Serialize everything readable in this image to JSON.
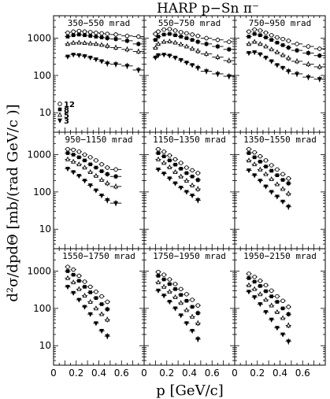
{
  "chart_data": {
    "type": "scatter",
    "title": "HARP p−Sn π⁻",
    "xlabel": "p [GeV/c]",
    "ylabel": "d²σ/dpdΘ [mb/(rad GeV/c )]",
    "xlim": [
      0,
      0.8
    ],
    "ylim": [
      3,
      4000
    ],
    "log_y": true,
    "x_ticks": [
      "0",
      "0.2",
      "0.4",
      "0.6"
    ],
    "y_ticks": [
      "10",
      "100",
      "1000"
    ],
    "legend": {
      "placement": "inside first panel, left",
      "entries": [
        "12",
        "8",
        "5",
        "3"
      ]
    },
    "panels": [
      {
        "label": "350−550 mrad",
        "series": [
          {
            "name": "12",
            "x": [
              0.125,
              0.175,
              0.225,
              0.275,
              0.325,
              0.375,
              0.425,
              0.475,
              0.55,
              0.65,
              0.75
            ],
            "y": [
              1400,
              1500,
              1550,
              1500,
              1450,
              1400,
              1350,
              1300,
              1250,
              1150,
              1100
            ]
          },
          {
            "name": "8",
            "x": [
              0.125,
              0.175,
              0.225,
              0.275,
              0.325,
              0.375,
              0.425,
              0.475,
              0.55,
              0.65,
              0.75
            ],
            "y": [
              1100,
              1200,
              1250,
              1200,
              1150,
              1100,
              1050,
              1000,
              950,
              850,
              700
            ]
          },
          {
            "name": "5",
            "x": [
              0.125,
              0.175,
              0.225,
              0.275,
              0.325,
              0.375,
              0.425,
              0.475,
              0.55,
              0.65,
              0.75
            ],
            "y": [
              700,
              750,
              760,
              740,
              720,
              700,
              660,
              620,
              560,
              500,
              440
            ]
          },
          {
            "name": "3",
            "x": [
              0.125,
              0.175,
              0.225,
              0.275,
              0.325,
              0.375,
              0.425,
              0.475,
              0.55,
              0.65,
              0.75
            ],
            "y": [
              320,
              360,
              350,
              330,
              300,
              270,
              240,
              210,
              200,
              180,
              140
            ]
          }
        ]
      },
      {
        "label": "550−750 mrad",
        "series": [
          {
            "name": "12",
            "x": [
              0.1,
              0.125,
              0.175,
              0.225,
              0.275,
              0.325,
              0.375,
              0.425,
              0.475,
              0.55,
              0.65,
              0.75
            ],
            "y": [
              1300,
              1500,
              1700,
              1750,
              1600,
              1450,
              1350,
              1250,
              1150,
              1000,
              900,
              800
            ]
          },
          {
            "name": "8",
            "x": [
              0.1,
              0.125,
              0.175,
              0.225,
              0.275,
              0.325,
              0.375,
              0.425,
              0.475,
              0.55,
              0.65,
              0.75
            ],
            "y": [
              900,
              1100,
              1250,
              1300,
              1200,
              1100,
              1000,
              900,
              800,
              700,
              600,
              500
            ]
          },
          {
            "name": "5",
            "x": [
              0.1,
              0.125,
              0.175,
              0.225,
              0.275,
              0.325,
              0.375,
              0.425,
              0.475,
              0.55,
              0.65,
              0.75
            ],
            "y": [
              550,
              700,
              800,
              820,
              760,
              680,
              600,
              520,
              450,
              380,
              310,
              250
            ]
          },
          {
            "name": "3",
            "x": [
              0.1,
              0.125,
              0.175,
              0.225,
              0.275,
              0.325,
              0.375,
              0.425,
              0.475,
              0.55,
              0.65,
              0.75
            ],
            "y": [
              300,
              350,
              360,
              340,
              300,
              260,
              220,
              190,
              160,
              130,
              110,
              95
            ]
          }
        ]
      },
      {
        "label": "750−950 mrad",
        "series": [
          {
            "name": "12",
            "x": [
              0.125,
              0.175,
              0.225,
              0.275,
              0.325,
              0.375,
              0.425,
              0.475,
              0.55,
              0.65,
              0.75
            ],
            "y": [
              1500,
              1700,
              1600,
              1400,
              1200,
              1050,
              950,
              850,
              700,
              600,
              520
            ]
          },
          {
            "name": "8",
            "x": [
              0.125,
              0.175,
              0.225,
              0.275,
              0.325,
              0.375,
              0.425,
              0.475,
              0.55,
              0.65,
              0.75
            ],
            "y": [
              1100,
              1300,
              1200,
              1050,
              900,
              760,
              650,
              560,
              470,
              400,
              340
            ]
          },
          {
            "name": "5",
            "x": [
              0.125,
              0.175,
              0.225,
              0.275,
              0.325,
              0.375,
              0.425,
              0.475,
              0.55,
              0.65,
              0.75
            ],
            "y": [
              700,
              800,
              700,
              600,
              500,
              420,
              350,
              290,
              240,
              200,
              170
            ]
          },
          {
            "name": "3",
            "x": [
              0.125,
              0.175,
              0.225,
              0.275,
              0.325,
              0.375,
              0.425,
              0.475,
              0.55,
              0.65,
              0.75
            ],
            "y": [
              400,
              420,
              370,
              300,
              240,
              190,
              160,
              130,
              110,
              90,
              80
            ]
          }
        ]
      },
      {
        "label": "950−1150 mrad",
        "series": [
          {
            "name": "12",
            "x": [
              0.125,
              0.175,
              0.225,
              0.275,
              0.325,
              0.375,
              0.425,
              0.475,
              0.55
            ],
            "y": [
              1400,
              1350,
              1200,
              1000,
              850,
              700,
              550,
              450,
              400
            ]
          },
          {
            "name": "8",
            "x": [
              0.125,
              0.175,
              0.225,
              0.275,
              0.325,
              0.375,
              0.425,
              0.475,
              0.55
            ],
            "y": [
              1100,
              1000,
              850,
              700,
              550,
              450,
              360,
              300,
              260
            ]
          },
          {
            "name": "5",
            "x": [
              0.125,
              0.175,
              0.225,
              0.275,
              0.325,
              0.375,
              0.425,
              0.475,
              0.55
            ],
            "y": [
              750,
              650,
              550,
              450,
              340,
              270,
              210,
              170,
              140
            ]
          },
          {
            "name": "3",
            "x": [
              0.125,
              0.175,
              0.225,
              0.275,
              0.325,
              0.375,
              0.425,
              0.475,
              0.55
            ],
            "y": [
              420,
              340,
              270,
              200,
              150,
              110,
              80,
              60,
              50
            ]
          }
        ]
      },
      {
        "label": "1150−1350 mrad",
        "series": [
          {
            "name": "12",
            "x": [
              0.125,
              0.175,
              0.225,
              0.275,
              0.325,
              0.375,
              0.425,
              0.475
            ],
            "y": [
              1400,
              1200,
              950,
              750,
              600,
              450,
              380,
              320
            ]
          },
          {
            "name": "8",
            "x": [
              0.125,
              0.175,
              0.225,
              0.275,
              0.325,
              0.375,
              0.425,
              0.475
            ],
            "y": [
              1100,
              900,
              700,
              540,
              420,
              320,
              260,
              210
            ]
          },
          {
            "name": "5",
            "x": [
              0.125,
              0.175,
              0.225,
              0.275,
              0.325,
              0.375,
              0.425,
              0.475
            ],
            "y": [
              750,
              600,
              460,
              340,
              260,
              200,
              150,
              120
            ]
          },
          {
            "name": "3",
            "x": [
              0.125,
              0.175,
              0.225,
              0.275,
              0.325,
              0.375,
              0.425,
              0.475
            ],
            "y": [
              400,
              310,
              230,
              170,
              130,
              100,
              80,
              60
            ]
          }
        ]
      },
      {
        "label": "1350−1550 mrad",
        "series": [
          {
            "name": "12",
            "x": [
              0.125,
              0.175,
              0.225,
              0.275,
              0.325,
              0.375,
              0.425,
              0.475
            ],
            "y": [
              1400,
              1150,
              900,
              700,
              520,
              400,
              300,
              230
            ]
          },
          {
            "name": "8",
            "x": [
              0.125,
              0.175,
              0.225,
              0.275,
              0.325,
              0.375,
              0.425,
              0.475
            ],
            "y": [
              1100,
              850,
              650,
              480,
              370,
              280,
              210,
              170
            ]
          },
          {
            "name": "5",
            "x": [
              0.125,
              0.175,
              0.225,
              0.275,
              0.325,
              0.375,
              0.425,
              0.475
            ],
            "y": [
              700,
              550,
              400,
              300,
              220,
              160,
              120,
              90
            ]
          },
          {
            "name": "3",
            "x": [
              0.125,
              0.175,
              0.225,
              0.275,
              0.325,
              0.375,
              0.425,
              0.475
            ],
            "y": [
              380,
              280,
              200,
              140,
              100,
              75,
              55,
              40
            ]
          }
        ]
      },
      {
        "label": "1550−1750 mrad",
        "series": [
          {
            "name": "12",
            "x": [
              0.125,
              0.175,
              0.225,
              0.275,
              0.325,
              0.375,
              0.425,
              0.475
            ],
            "y": [
              1300,
              1100,
              750,
              520,
              380,
              280,
              210,
              150
            ]
          },
          {
            "name": "8",
            "x": [
              0.125,
              0.175,
              0.225,
              0.275,
              0.325,
              0.375,
              0.425,
              0.475
            ],
            "y": [
              1000,
              800,
              550,
              380,
              270,
              190,
              130,
              95
            ]
          },
          {
            "name": "5",
            "x": [
              0.125,
              0.175,
              0.225,
              0.275,
              0.325,
              0.375,
              0.425,
              0.475
            ],
            "y": [
              650,
              500,
              330,
              220,
              150,
              100,
              70,
              50
            ]
          },
          {
            "name": "3",
            "x": [
              0.125,
              0.175,
              0.225,
              0.275,
              0.325,
              0.375,
              0.425,
              0.475
            ],
            "y": [
              380,
              260,
              170,
              110,
              70,
              40,
              25,
              18
            ]
          }
        ]
      },
      {
        "label": "1750−1950 mrad",
        "series": [
          {
            "name": "12",
            "x": [
              0.125,
              0.175,
              0.225,
              0.275,
              0.325,
              0.375,
              0.425,
              0.475
            ],
            "y": [
              950,
              800,
              600,
              450,
              330,
              240,
              170,
              120
            ]
          },
          {
            "name": "8",
            "x": [
              0.125,
              0.175,
              0.225,
              0.275,
              0.325,
              0.375,
              0.425,
              0.475
            ],
            "y": [
              750,
              600,
              450,
              330,
              230,
              160,
              110,
              75
            ]
          },
          {
            "name": "5",
            "x": [
              0.125,
              0.175,
              0.225,
              0.275,
              0.325,
              0.375,
              0.425,
              0.475
            ],
            "y": [
              500,
              380,
              280,
              200,
              140,
              90,
              60,
              40
            ]
          },
          {
            "name": "3",
            "x": [
              0.125,
              0.175,
              0.225,
              0.275,
              0.325,
              0.375,
              0.425,
              0.475
            ],
            "y": [
              300,
              220,
              150,
              100,
              65,
              40,
              25,
              15
            ]
          }
        ]
      },
      {
        "label": "1950−2150 mrad",
        "series": [
          {
            "name": "12",
            "x": [
              0.125,
              0.175,
              0.225,
              0.275,
              0.325,
              0.375,
              0.425,
              0.475
            ],
            "y": [
              850,
              700,
              550,
              420,
              300,
              210,
              160,
              110
            ]
          },
          {
            "name": "8",
            "x": [
              0.125,
              0.175,
              0.225,
              0.275,
              0.325,
              0.375,
              0.425,
              0.475
            ],
            "y": [
              650,
              520,
              400,
              290,
              210,
              150,
              100,
              70
            ]
          },
          {
            "name": "5",
            "x": [
              0.125,
              0.175,
              0.225,
              0.275,
              0.325,
              0.375,
              0.425,
              0.475
            ],
            "y": [
              420,
              330,
              240,
              170,
              120,
              80,
              55,
              35
            ]
          },
          {
            "name": "3",
            "x": [
              0.125,
              0.175,
              0.225,
              0.275,
              0.325,
              0.375,
              0.425,
              0.475
            ],
            "y": [
              280,
              200,
              130,
              80,
              50,
              30,
              20,
              13
            ]
          }
        ]
      }
    ]
  }
}
